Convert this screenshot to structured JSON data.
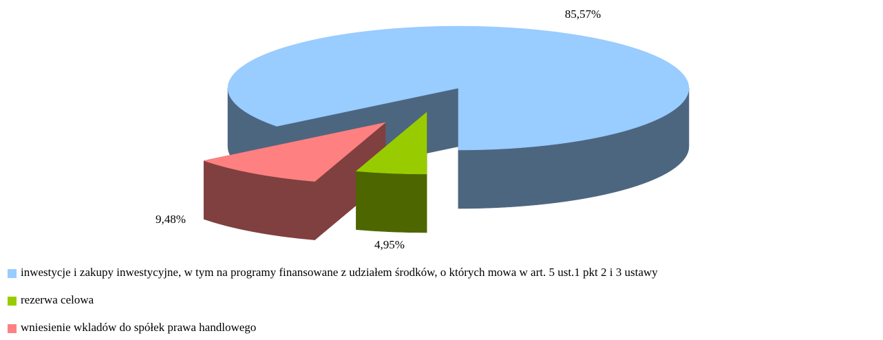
{
  "chart_data": {
    "type": "pie3d",
    "categories": [
      "inwestycje i zakupy inwestycyjne, w tym na programy finansowane z udziałem środków, o których mowa w art. 5 ust.1 pkt 2 i 3 ustawy",
      "rezerwa celowa",
      "wniesienie wkladów do spółek prawa handlowego"
    ],
    "values": [
      85.57,
      4.95,
      9.48
    ],
    "value_labels": [
      "85,57%",
      "4,95%",
      "9,48%"
    ],
    "colors": [
      "#99ccff",
      "#99cc00",
      "#ff8080"
    ],
    "legend": "bottom"
  }
}
